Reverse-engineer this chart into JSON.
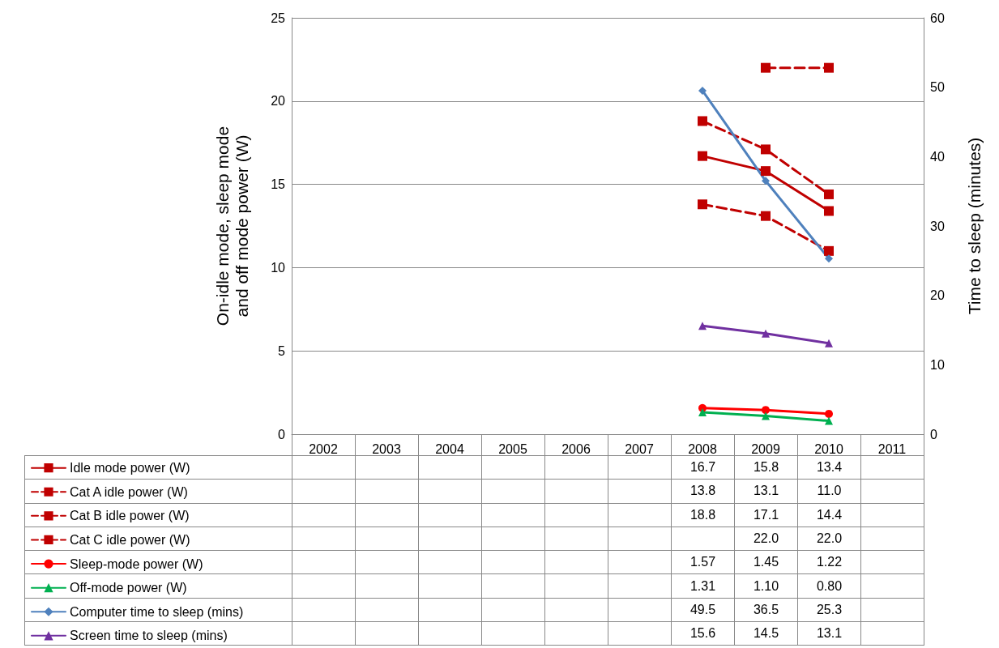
{
  "chart_data": {
    "type": "line",
    "categories": [
      "2002",
      "2003",
      "2004",
      "2005",
      "2006",
      "2007",
      "2008",
      "2009",
      "2010",
      "2011"
    ],
    "ylabel": "On-idle mode, sleep mode\nand off mode power (W)",
    "y2label": "Time to sleep (minutes)",
    "ylim": [
      0,
      25
    ],
    "yticks": [
      0,
      5,
      10,
      15,
      20,
      25
    ],
    "y2lim": [
      0,
      60
    ],
    "y2ticks": [
      0,
      10,
      20,
      30,
      40,
      50,
      60
    ],
    "grid": "y",
    "legend": "bottom",
    "series": [
      {
        "name": "Idle mode power (W)",
        "color": "#c00000",
        "marker": "square",
        "line_style": "solid",
        "values": [
          null,
          null,
          null,
          null,
          null,
          null,
          16.7,
          15.8,
          13.4,
          null
        ],
        "value_labels": [
          null,
          null,
          null,
          null,
          null,
          null,
          "16.7",
          "15.8",
          "13.4",
          null
        ]
      },
      {
        "name": "Cat A idle power (W)",
        "color": "#c00000",
        "marker": "square",
        "line_style": "dashed",
        "values": [
          null,
          null,
          null,
          null,
          null,
          null,
          13.8,
          13.1,
          11.0,
          null
        ],
        "value_labels": [
          null,
          null,
          null,
          null,
          null,
          null,
          "13.8",
          "13.1",
          "11.0",
          null
        ]
      },
      {
        "name": "Cat B idle power (W)",
        "color": "#c00000",
        "marker": "square",
        "line_style": "dashed",
        "values": [
          null,
          null,
          null,
          null,
          null,
          null,
          18.8,
          17.1,
          14.4,
          null
        ],
        "value_labels": [
          null,
          null,
          null,
          null,
          null,
          null,
          "18.8",
          "17.1",
          "14.4",
          null
        ]
      },
      {
        "name": "Cat C idle power (W)",
        "color": "#c00000",
        "marker": "square",
        "line_style": "dashed",
        "values": [
          null,
          null,
          null,
          null,
          null,
          null,
          null,
          22.0,
          22.0,
          null
        ],
        "value_labels": [
          null,
          null,
          null,
          null,
          null,
          null,
          null,
          "22.0",
          "22.0",
          null
        ]
      },
      {
        "name": "Sleep-mode power (W)",
        "color": "#ff0000",
        "marker": "circle",
        "line_style": "solid",
        "values": [
          null,
          null,
          null,
          null,
          null,
          null,
          1.57,
          1.45,
          1.22,
          null
        ],
        "value_labels": [
          null,
          null,
          null,
          null,
          null,
          null,
          "1.57",
          "1.45",
          "1.22",
          null
        ]
      },
      {
        "name": "Off-mode power (W)",
        "color": "#00b050",
        "marker": "triangle",
        "line_style": "solid",
        "values": [
          null,
          null,
          null,
          null,
          null,
          null,
          1.31,
          1.1,
          0.8,
          null
        ],
        "value_labels": [
          null,
          null,
          null,
          null,
          null,
          null,
          "1.31",
          "1.10",
          "0.80",
          null
        ]
      },
      {
        "name": "Computer time to sleep (mins)",
        "color": "#4f81bd",
        "marker": "diamond",
        "line_style": "solid",
        "axis": "y2",
        "values": [
          null,
          null,
          null,
          null,
          null,
          null,
          49.5,
          36.5,
          25.3,
          null
        ],
        "value_labels": [
          null,
          null,
          null,
          null,
          null,
          null,
          "49.5",
          "36.5",
          "25.3",
          null
        ]
      },
      {
        "name": "Screen time to sleep (mins)",
        "color": "#7030a0",
        "marker": "triangle",
        "line_style": "solid",
        "axis": "y2",
        "values": [
          null,
          null,
          null,
          null,
          null,
          null,
          15.6,
          14.5,
          13.1,
          null
        ],
        "value_labels": [
          null,
          null,
          null,
          null,
          null,
          null,
          "15.6",
          "14.5",
          "13.1",
          null
        ]
      }
    ]
  }
}
